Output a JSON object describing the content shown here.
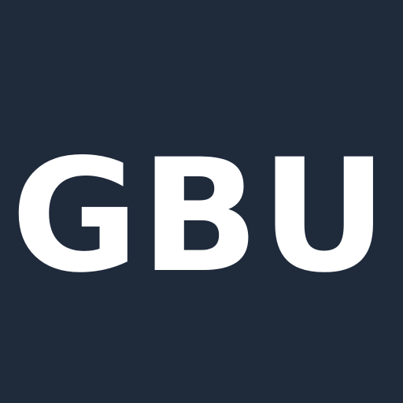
{
  "logo": {
    "text": "GBU",
    "background_color": "#1f2a3b",
    "text_color": "#ffffff"
  }
}
